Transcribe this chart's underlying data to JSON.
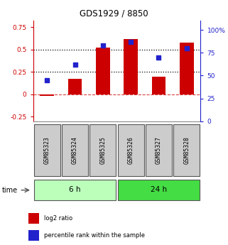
{
  "title": "GDS1929 / 8850",
  "samples": [
    "GSM85323",
    "GSM85324",
    "GSM85325",
    "GSM85326",
    "GSM85327",
    "GSM85328"
  ],
  "log2_ratio": [
    -0.02,
    0.17,
    0.52,
    0.62,
    0.2,
    0.58
  ],
  "percentile_rank": [
    45,
    62,
    83,
    87,
    70,
    80
  ],
  "bar_color": "#cc0000",
  "square_color": "#2222cc",
  "ylim_left": [
    -0.3,
    0.82
  ],
  "ylim_right": [
    0,
    110
  ],
  "yticks_left": [
    -0.25,
    0,
    0.25,
    0.5,
    0.75
  ],
  "yticks_right": [
    0,
    25,
    50,
    75,
    100
  ],
  "ytick_labels_left": [
    "-0.25",
    "0",
    "0.25",
    "0.5",
    "0.75"
  ],
  "ytick_labels_right": [
    "0",
    "25",
    "50",
    "75",
    "100%"
  ],
  "hlines_dotted": [
    0.25,
    0.5
  ],
  "hline_dashed": 0.0,
  "groups": [
    {
      "label": "6 h",
      "indices": [
        0,
        1,
        2
      ],
      "color": "#bbffbb"
    },
    {
      "label": "24 h",
      "indices": [
        3,
        4,
        5
      ],
      "color": "#44dd44"
    }
  ],
  "time_label": "time",
  "legend_items": [
    {
      "label": "log2 ratio",
      "color": "#cc0000"
    },
    {
      "label": "percentile rank within the sample",
      "color": "#2222cc"
    }
  ],
  "background_color": "#ffffff",
  "bar_width": 0.5,
  "sample_box_color": "#cccccc",
  "sample_box_edge_color": "#555555"
}
